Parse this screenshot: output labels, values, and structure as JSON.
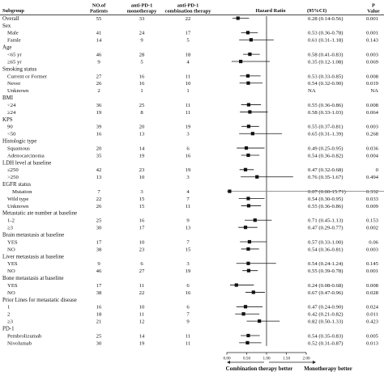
{
  "headers": {
    "subgroup": "Subgroup",
    "patients": [
      "NO.of",
      "Patients"
    ],
    "mono": [
      "anti-PD-1",
      "monotherapy"
    ],
    "combo": [
      "anti-PD-1",
      "combination therapy"
    ],
    "hr": "Hazard Ratio",
    "ci": "(95%CI)",
    "p": [
      "P",
      "Value"
    ]
  },
  "chart_data": {
    "type": "forest",
    "x_ticks": [
      "0.00",
      "0.50",
      "1.00",
      "1.50",
      "2.00"
    ],
    "x_range": [
      0,
      2
    ],
    "reference_line": 1,
    "axis_labels": {
      "left": "Combination therapy better",
      "right": "Monotherapy better"
    },
    "rows": [
      {
        "label": "Overall",
        "level": 0,
        "n": "55",
        "mono": "33",
        "combo": "22",
        "hr": 0.28,
        "lo": 0.14,
        "hi": 0.56,
        "ci": "0.28 (0.14-0.56)",
        "p": "0.001"
      },
      {
        "label": "Sex",
        "level": 0
      },
      {
        "label": "Male",
        "level": 1,
        "n": "41",
        "mono": "24",
        "combo": "17",
        "hr": 0.53,
        "lo": 0.36,
        "hi": 0.78,
        "ci": "0.53 (0.36-0.78)",
        "p": "0.001"
      },
      {
        "label": "Famle",
        "level": 1,
        "n": "14",
        "mono": "9",
        "combo": "5",
        "hr": 0.61,
        "lo": 0.31,
        "hi": 1.18,
        "ci": "0.61 (0.31-1.18)",
        "p": "0.143"
      },
      {
        "label": "Age",
        "level": 0
      },
      {
        "label": "<65 yr",
        "level": 1,
        "n": "46",
        "mono": "28",
        "combo": "18",
        "hr": 0.58,
        "lo": 0.41,
        "hi": 0.83,
        "ci": "0.58 (0.41-0.83)",
        "p": "0.003"
      },
      {
        "label": "≥65 yr",
        "level": 1,
        "n": "9",
        "mono": "5",
        "combo": "4",
        "hr": 0.35,
        "lo": 0.12,
        "hi": 1.08,
        "ci": "0.35 (0.12-1.08)",
        "p": "0.069"
      },
      {
        "label": "Smoking status",
        "level": 0
      },
      {
        "label": "Current or Former",
        "level": 1,
        "n": "27",
        "mono": "16",
        "combo": "11",
        "hr": 0.53,
        "lo": 0.33,
        "hi": 0.85,
        "ci": "0.53 (0.33-0.85)",
        "p": "0.008"
      },
      {
        "label": "Never",
        "level": 1,
        "n": "26",
        "mono": "16",
        "combo": "10",
        "hr": 0.54,
        "lo": 0.32,
        "hi": 0.9,
        "ci": "0.54 (0.32-0.90)",
        "p": "0.019"
      },
      {
        "label": "Unknown",
        "level": 1,
        "n": "2",
        "mono": "1",
        "combo": "1",
        "ci": "NA",
        "p": "NA"
      },
      {
        "label": "BMI",
        "level": 0
      },
      {
        "label": "<24",
        "level": 1,
        "n": "36",
        "mono": "25",
        "combo": "11",
        "hr": 0.55,
        "lo": 0.36,
        "hi": 0.86,
        "ci": "0.55 (0.36-0.86)",
        "p": "0.008"
      },
      {
        "label": "≥24",
        "level": 1,
        "n": "19",
        "mono": "8",
        "combo": "11",
        "hr": 0.58,
        "lo": 0.33,
        "hi": 1.03,
        "ci": "0.58 (0.33-1.03)",
        "p": "0.064"
      },
      {
        "label": "KPS",
        "level": 0
      },
      {
        "label": "90",
        "level": 1,
        "n": "39",
        "mono": "20",
        "combo": "19",
        "hr": 0.55,
        "lo": 0.37,
        "hi": 0.81,
        "ci": "0.55 (0.37-0.81)",
        "p": "0.003"
      },
      {
        "label": "<50",
        "level": 1,
        "n": "16",
        "mono": "13",
        "combo": "3",
        "hr": 0.65,
        "lo": 0.31,
        "hi": 1.39,
        "ci": "0.65 (0.31-1.39)",
        "p": "0.268"
      },
      {
        "label": "Histologic type",
        "level": 0
      },
      {
        "label": "Squamous",
        "level": 1,
        "n": "20",
        "mono": "14",
        "combo": "6",
        "hr": 0.49,
        "lo": 0.25,
        "hi": 0.95,
        "ci": "0.49 (0.25-0.95)",
        "p": "0.036"
      },
      {
        "label": "Adenocarcinoma",
        "level": 1,
        "n": "35",
        "mono": "19",
        "combo": "16",
        "hr": 0.54,
        "lo": 0.36,
        "hi": 0.82,
        "ci": "0.54 (0.36-0.82)",
        "p": "0.004"
      },
      {
        "label": "LDH level at baseline",
        "level": 0
      },
      {
        "label": "≤250",
        "level": 1,
        "n": "42",
        "mono": "23",
        "combo": "19",
        "hr": 0.47,
        "lo": 0.32,
        "hi": 0.68,
        "ci": "0.47 (0.32-0.68)",
        "p": "0"
      },
      {
        "label": ">250",
        "level": 1,
        "n": "13",
        "mono": "10",
        "combo": "3",
        "hr": 0.76,
        "lo": 0.35,
        "hi": 1.67,
        "ci": "0.76 (0.35-1.67)",
        "p": "0.494"
      },
      {
        "label": "EGFR status",
        "level": 0
      },
      {
        "label": "Mutation",
        "level": 2,
        "n": "7",
        "mono": "3",
        "combo": "4",
        "hr": 0.07,
        "lo": 0.0,
        "hi": 15.71,
        "ci": "0.07 (0.00-15.71)",
        "p": "0.332"
      },
      {
        "label": "Wild type",
        "level": 1,
        "n": "22",
        "mono": "15",
        "combo": "7",
        "hr": 0.54,
        "lo": 0.3,
        "hi": 0.95,
        "ci": "0.54 (0.30-0.95)",
        "p": "0.033"
      },
      {
        "label": "Unknown",
        "level": 1,
        "n": "26",
        "mono": "15",
        "combo": "11",
        "hr": 0.55,
        "lo": 0.36,
        "hi": 0.86,
        "ci": "0.55 (0.36-0.86)",
        "p": "0.009"
      },
      {
        "label": "Metastatic ate number at baseline",
        "level": 0
      },
      {
        "label": "1-2",
        "level": 1,
        "n": "25",
        "mono": "16",
        "combo": "9",
        "hr": 0.71,
        "lo": 0.45,
        "hi": 1.13,
        "ci": "0.71 (0.45-1.13)",
        "p": "0.153"
      },
      {
        "label": "≥3",
        "level": 1,
        "n": "30",
        "mono": "17",
        "combo": "13",
        "hr": 0.47,
        "lo": 0.29,
        "hi": 0.77,
        "ci": "0.47 (0.29-0.77)",
        "p": "0.002"
      },
      {
        "label": "Brain metastasis at baseline",
        "level": 0
      },
      {
        "label": "YES",
        "level": 1,
        "n": "17",
        "mono": "10",
        "combo": "7",
        "hr": 0.57,
        "lo": 0.33,
        "hi": 1.0,
        "ci": "0.57 (0.33-1.00)",
        "p": "0.06"
      },
      {
        "label": "NO",
        "level": 1,
        "n": "38",
        "mono": "23",
        "combo": "15",
        "hr": 0.54,
        "lo": 0.36,
        "hi": 0.81,
        "ci": "0.54 (0.36-0.81)",
        "p": "0.003"
      },
      {
        "label": "Liver metastasis at baseline",
        "level": 0
      },
      {
        "label": "YES",
        "level": 1,
        "n": "9",
        "mono": "6",
        "combo": "3",
        "hr": 0.54,
        "lo": 0.24,
        "hi": 1.24,
        "ci": "0.54 (0.24-1.24)",
        "p": "0.145"
      },
      {
        "label": "NO",
        "level": 1,
        "n": "46",
        "mono": "27",
        "combo": "19",
        "hr": 0.55,
        "lo": 0.39,
        "hi": 0.78,
        "ci": "0.55 (0.39-0.78)",
        "p": "0.001"
      },
      {
        "label": "Bone metastasis at baseline",
        "level": 0
      },
      {
        "label": "YES",
        "level": 1,
        "n": "17",
        "mono": "11",
        "combo": "6",
        "hr": 0.24,
        "lo": 0.08,
        "hi": 0.68,
        "ci": "0.24 (0.08-0.68)",
        "p": "0.008"
      },
      {
        "label": "NO",
        "level": 1,
        "n": "38",
        "mono": "22",
        "combo": "16",
        "hr": 0.67,
        "lo": 0.47,
        "hi": 0.96,
        "ci": "0.67 (0.47-0.96)",
        "p": "0.028"
      },
      {
        "label": "Prior Lines for metastatic disease",
        "level": 0
      },
      {
        "label": "1",
        "level": 1,
        "n": "16",
        "mono": "10",
        "combo": "6",
        "hr": 0.47,
        "lo": 0.24,
        "hi": 0.9,
        "ci": "0.47 (0.24-0.90)",
        "p": "0.024"
      },
      {
        "label": "2",
        "level": 1,
        "n": "18",
        "mono": "11",
        "combo": "7",
        "hr": 0.42,
        "lo": 0.21,
        "hi": 0.82,
        "ci": "0.42 (0.21-0.82)",
        "p": "0.011"
      },
      {
        "label": "≥3",
        "level": 1,
        "n": "21",
        "mono": "12",
        "combo": "9",
        "hr": 0.82,
        "lo": 0.5,
        "hi": 1.33,
        "ci": "0.82 (0.50-1.33)",
        "p": "0.423"
      },
      {
        "label": "PD-1",
        "level": 0
      },
      {
        "label": "Pembrolizumab",
        "level": 1,
        "n": "25",
        "mono": "14",
        "combo": "11",
        "hr": 0.54,
        "lo": 0.35,
        "hi": 0.83,
        "ci": "0.54 (0.35-0.83)",
        "p": "0.005"
      },
      {
        "label": "Nivolumab",
        "level": 1,
        "n": "30",
        "mono": "19",
        "combo": "11",
        "hr": 0.52,
        "lo": 0.31,
        "hi": 0.87,
        "ci": "0.52 (0.31-0.87)",
        "p": "0.013"
      }
    ]
  }
}
